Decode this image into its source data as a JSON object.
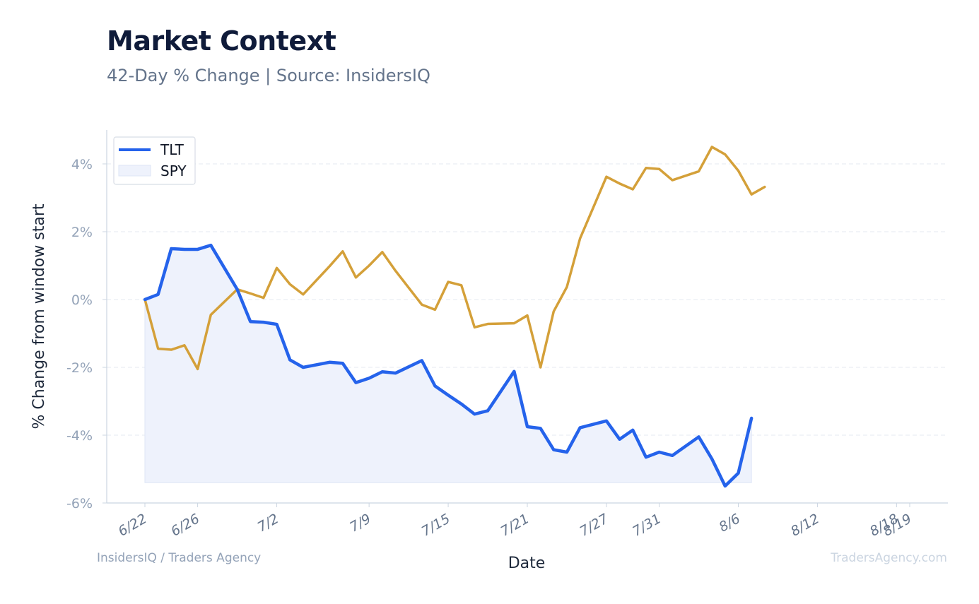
{
  "header": {
    "title": "Market Context",
    "subtitle": "42-Day % Change | Source: InsidersIQ"
  },
  "footer": {
    "left": "InsidersIQ / Traders Agency",
    "right": "TradersAgency.com"
  },
  "colors": {
    "tlt": "#2563eb",
    "spy": "#d4a039",
    "tlt_fill": "#eef2fc"
  },
  "chart_data": {
    "type": "line",
    "title": "Market Context",
    "subtitle": "42-Day % Change | Source: InsidersIQ",
    "xlabel": "Date",
    "ylabel": "% Change from window start",
    "ylim": [
      -6,
      5
    ],
    "yticks": [
      -6,
      -4,
      -2,
      0,
      2,
      4
    ],
    "ytick_labels": [
      "-6%",
      "-4%",
      "-2%",
      "0%",
      "2%",
      "4%"
    ],
    "grid": true,
    "legend": "top-left",
    "dates": [
      "2024-06-22",
      "2024-06-23",
      "2024-06-24",
      "2024-06-25",
      "2024-06-26",
      "2024-06-27",
      "2024-06-28",
      "2024-06-29",
      "2024-06-30",
      "2024-07-01",
      "2024-07-02",
      "2024-07-03",
      "2024-07-04",
      "2024-07-05",
      "2024-07-06",
      "2024-07-07",
      "2024-07-08",
      "2024-07-09",
      "2024-07-10",
      "2024-07-11",
      "2024-07-12",
      "2024-07-13",
      "2024-07-14",
      "2024-07-15",
      "2024-07-16",
      "2024-07-17",
      "2024-07-18",
      "2024-07-19",
      "2024-07-20",
      "2024-07-21",
      "2024-07-22",
      "2024-07-23",
      "2024-07-24",
      "2024-07-25",
      "2024-07-26",
      "2024-07-27",
      "2024-07-28",
      "2024-07-29",
      "2024-07-30",
      "2024-07-31",
      "2024-08-01",
      "2024-08-02",
      "2024-08-03",
      "2024-08-04",
      "2024-08-05",
      "2024-08-06",
      "2024-08-07",
      "2024-08-08",
      "2024-08-09",
      "2024-08-10",
      "2024-08-11",
      "2024-08-12",
      "2024-08-13",
      "2024-08-14",
      "2024-08-15",
      "2024-08-16",
      "2024-08-17",
      "2024-08-18",
      "2024-08-19"
    ],
    "xticks": [
      {
        "date": "2024-06-22",
        "label": "6/22"
      },
      {
        "date": "2024-06-26",
        "label": "6/26"
      },
      {
        "date": "2024-07-02",
        "label": "7/2"
      },
      {
        "date": "2024-07-09",
        "label": "7/9"
      },
      {
        "date": "2024-07-15",
        "label": "7/15"
      },
      {
        "date": "2024-07-21",
        "label": "7/21"
      },
      {
        "date": "2024-07-27",
        "label": "7/27"
      },
      {
        "date": "2024-07-31",
        "label": "7/31"
      },
      {
        "date": "2024-08-06",
        "label": "8/6"
      },
      {
        "date": "2024-08-12",
        "label": "8/12"
      },
      {
        "date": "2024-08-18",
        "label": "8/18"
      },
      {
        "date": "2024-08-19",
        "label": "8/19"
      }
    ],
    "series": [
      {
        "name": "TLT",
        "style": "line",
        "points": [
          [
            "2024-06-22",
            0.0
          ],
          [
            "2024-06-23",
            0.15
          ],
          [
            "2024-06-24",
            1.5
          ],
          [
            "2024-06-25",
            1.48
          ],
          [
            "2024-06-26",
            1.48
          ],
          [
            "2024-06-27",
            1.6
          ],
          [
            "2024-06-29",
            0.3
          ],
          [
            "2024-06-30",
            -0.65
          ],
          [
            "2024-07-01",
            -0.67
          ],
          [
            "2024-07-02",
            -0.73
          ],
          [
            "2024-07-03",
            -1.78
          ],
          [
            "2024-07-04",
            -2.0
          ],
          [
            "2024-07-06",
            -1.85
          ],
          [
            "2024-07-07",
            -1.88
          ],
          [
            "2024-07-08",
            -2.45
          ],
          [
            "2024-07-09",
            -2.32
          ],
          [
            "2024-07-10",
            -2.13
          ],
          [
            "2024-07-11",
            -2.17
          ],
          [
            "2024-07-13",
            -1.8
          ],
          [
            "2024-07-14",
            -2.55
          ],
          [
            "2024-07-15",
            -2.82
          ],
          [
            "2024-07-16",
            -3.08
          ],
          [
            "2024-07-17",
            -3.38
          ],
          [
            "2024-07-18",
            -3.28
          ],
          [
            "2024-07-20",
            -2.12
          ],
          [
            "2024-07-21",
            -3.75
          ],
          [
            "2024-07-22",
            -3.8
          ],
          [
            "2024-07-23",
            -4.43
          ],
          [
            "2024-07-24",
            -4.5
          ],
          [
            "2024-07-25",
            -3.78
          ],
          [
            "2024-07-27",
            -3.58
          ],
          [
            "2024-07-28",
            -4.12
          ],
          [
            "2024-07-29",
            -3.85
          ],
          [
            "2024-07-30",
            -4.65
          ],
          [
            "2024-07-31",
            -4.5
          ],
          [
            "2024-08-01",
            -4.6
          ],
          [
            "2024-08-03",
            -4.05
          ],
          [
            "2024-08-04",
            -4.7
          ],
          [
            "2024-08-05",
            -5.5
          ],
          [
            "2024-08-06",
            -5.12
          ],
          [
            "2024-08-07",
            -3.5
          ]
        ]
      },
      {
        "name": "SPY",
        "style": "area",
        "points": [
          [
            "2024-06-22",
            0.0
          ],
          [
            "2024-06-23",
            -1.45
          ],
          [
            "2024-06-24",
            -1.48
          ],
          [
            "2024-06-25",
            -1.35
          ],
          [
            "2024-06-26",
            -2.05
          ],
          [
            "2024-06-27",
            -0.45
          ],
          [
            "2024-06-29",
            0.3
          ],
          [
            "2024-06-30",
            0.18
          ],
          [
            "2024-07-01",
            0.05
          ],
          [
            "2024-07-02",
            0.93
          ],
          [
            "2024-07-03",
            0.45
          ],
          [
            "2024-07-04",
            0.15
          ],
          [
            "2024-07-06",
            0.98
          ],
          [
            "2024-07-07",
            1.42
          ],
          [
            "2024-07-08",
            0.65
          ],
          [
            "2024-07-09",
            1.0
          ],
          [
            "2024-07-10",
            1.4
          ],
          [
            "2024-07-11",
            0.85
          ],
          [
            "2024-07-13",
            -0.15
          ],
          [
            "2024-07-14",
            -0.3
          ],
          [
            "2024-07-15",
            0.52
          ],
          [
            "2024-07-16",
            0.42
          ],
          [
            "2024-07-17",
            -0.82
          ],
          [
            "2024-07-18",
            -0.72
          ],
          [
            "2024-07-20",
            -0.7
          ],
          [
            "2024-07-21",
            -0.47
          ],
          [
            "2024-07-22",
            -2.0
          ],
          [
            "2024-07-23",
            -0.35
          ],
          [
            "2024-07-24",
            0.37
          ],
          [
            "2024-07-25",
            1.8
          ],
          [
            "2024-07-27",
            3.62
          ],
          [
            "2024-07-28",
            3.42
          ],
          [
            "2024-07-29",
            3.25
          ],
          [
            "2024-07-30",
            3.88
          ],
          [
            "2024-07-31",
            3.85
          ],
          [
            "2024-08-01",
            3.52
          ],
          [
            "2024-08-03",
            3.78
          ],
          [
            "2024-08-04",
            4.5
          ],
          [
            "2024-08-05",
            4.28
          ],
          [
            "2024-08-06",
            3.8
          ],
          [
            "2024-08-07",
            3.1
          ],
          [
            "2024-08-08",
            3.32
          ]
        ]
      }
    ]
  }
}
